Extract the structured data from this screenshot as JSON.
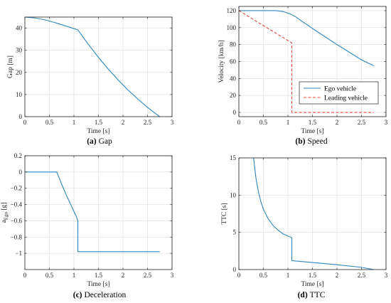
{
  "chart_data": [
    {
      "id": "gap",
      "type": "line",
      "caption_letter": "(a)",
      "caption_text": "Gap",
      "xlabel": "Time [s]",
      "ylabel": "Gap [m]",
      "xlim": [
        0,
        3
      ],
      "ylim": [
        0,
        45
      ],
      "xticks": [
        0,
        0.5,
        1,
        1.5,
        2,
        2.5,
        3
      ],
      "xtick_labels": [
        "0",
        "0.5",
        "1",
        "1.5",
        "2",
        "2.5",
        "3"
      ],
      "yticks": [
        0,
        10,
        20,
        30,
        40
      ],
      "ytick_labels": [
        "0",
        "10",
        "20",
        "30",
        "40"
      ],
      "grid": true,
      "series": [
        {
          "color": "#2e86c1",
          "dash": "",
          "x": [
            0,
            0.2,
            0.4,
            0.6,
            0.8,
            1.0,
            1.08,
            1.3,
            1.5,
            1.7,
            1.9,
            2.1,
            2.3,
            2.5,
            2.7,
            2.75
          ],
          "y": [
            45,
            44.6,
            43.8,
            42.6,
            41.2,
            39.8,
            39.2,
            32.5,
            26.8,
            21.5,
            16.6,
            12.1,
            8.0,
            4.2,
            0.8,
            0
          ]
        }
      ]
    },
    {
      "id": "speed",
      "type": "line",
      "caption_letter": "(b)",
      "caption_text": "Speed",
      "xlabel": "Time [s]",
      "ylabel": "Velocity [km/h]",
      "xlim": [
        0,
        3
      ],
      "ylim": [
        -5,
        125
      ],
      "xticks": [
        0,
        0.5,
        1,
        1.5,
        2,
        2.5,
        3
      ],
      "xtick_labels": [
        "0",
        "0.5",
        "1",
        "1.5",
        "2",
        "2.5",
        "3"
      ],
      "yticks": [
        0,
        20,
        40,
        60,
        80,
        100,
        120
      ],
      "ytick_labels": [
        "0",
        "20",
        "40",
        "60",
        "80",
        "100",
        "120"
      ],
      "grid": true,
      "legend": [
        "Ego vehicle",
        "Leading vehicle"
      ],
      "legend_position": "lower-right",
      "series": [
        {
          "name": "Ego vehicle",
          "color": "#2e86c1",
          "dash": "",
          "x": [
            0,
            0.6,
            0.75,
            0.9,
            1.05,
            1.15,
            1.3,
            1.5,
            2.0,
            2.5,
            2.75
          ],
          "y": [
            120,
            120,
            120,
            119,
            116,
            113,
            107,
            99,
            80,
            62,
            55
          ]
        },
        {
          "name": "Leading vehicle",
          "color": "#e8443a",
          "dash": "4,2.5",
          "x": [
            0,
            1.08,
            1.08,
            2.75
          ],
          "y": [
            120,
            82,
            0,
            0
          ]
        }
      ]
    },
    {
      "id": "decel",
      "type": "line",
      "caption_letter": "(c)",
      "caption_text": "Deceleration",
      "xlabel": "Time [s]",
      "ylabel_main": "a",
      "ylabel_sub": "Ego",
      "ylabel_unit": " [g]",
      "xlim": [
        0,
        3
      ],
      "ylim": [
        -1.2,
        0.2
      ],
      "xticks": [
        0,
        0.5,
        1,
        1.5,
        2,
        2.5,
        3
      ],
      "xtick_labels": [
        "0",
        "0.5",
        "1",
        "1.5",
        "2",
        "2.5",
        "3"
      ],
      "yticks": [
        -1,
        -0.8,
        -0.6,
        -0.4,
        -0.2,
        0,
        0.2
      ],
      "ytick_labels": [
        "−1",
        "−0.8",
        "−0.6",
        "−0.4",
        "−0.2",
        "0",
        "0.2"
      ],
      "grid": true,
      "series": [
        {
          "color": "#2e86c1",
          "dash": "",
          "x": [
            0,
            0.65,
            0.75,
            0.85,
            0.95,
            1.05,
            1.08,
            1.08,
            2.75
          ],
          "y": [
            0,
            0,
            -0.15,
            -0.29,
            -0.42,
            -0.55,
            -0.6,
            -0.98,
            -0.98
          ]
        }
      ]
    },
    {
      "id": "ttc",
      "type": "line",
      "caption_letter": "(d)",
      "caption_text": "TTC",
      "xlabel": "Time [s]",
      "ylabel": "TTC [s]",
      "xlim": [
        0,
        3
      ],
      "ylim": [
        0,
        15
      ],
      "xticks": [
        0,
        0.5,
        1,
        1.5,
        2,
        2.5,
        3
      ],
      "xtick_labels": [
        "0",
        "0.5",
        "1",
        "1.5",
        "2",
        "2.5",
        "3"
      ],
      "yticks": [
        0,
        5,
        10,
        15
      ],
      "ytick_labels": [
        "0",
        "5",
        "10",
        "15"
      ],
      "grid": true,
      "series": [
        {
          "color": "#2e86c1",
          "dash": "",
          "x": [
            0.3,
            0.35,
            0.4,
            0.45,
            0.5,
            0.6,
            0.7,
            0.8,
            0.9,
            1.0,
            1.08,
            1.08,
            1.5,
            2.0,
            2.5,
            2.75
          ],
          "y": [
            15,
            12.2,
            10.4,
            9.1,
            8.1,
            6.8,
            5.9,
            5.3,
            4.8,
            4.5,
            4.3,
            1.2,
            0.95,
            0.65,
            0.3,
            0
          ]
        }
      ]
    }
  ]
}
